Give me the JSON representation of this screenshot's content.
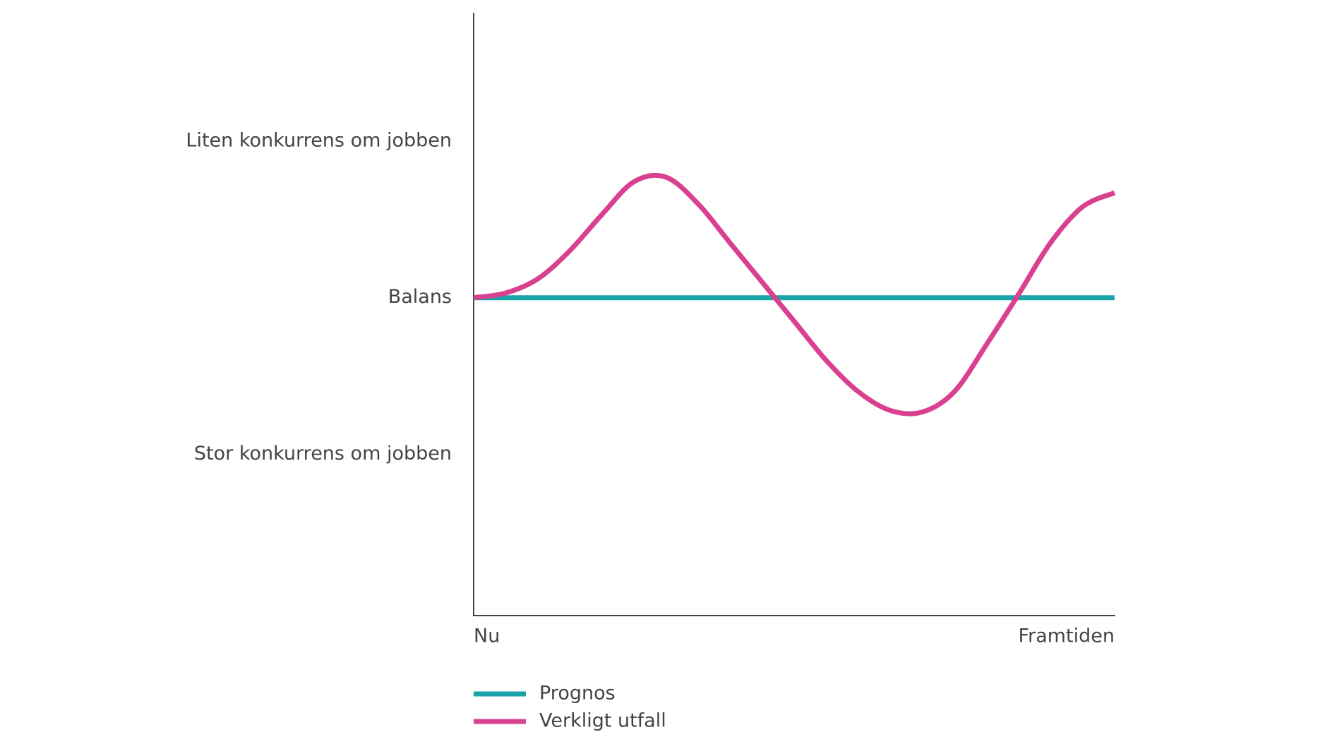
{
  "chart_data": {
    "type": "line",
    "x": [
      0,
      0.05,
      0.1,
      0.15,
      0.2,
      0.25,
      0.3,
      0.35,
      0.4,
      0.45,
      0.5,
      0.55,
      0.6,
      0.65,
      0.7,
      0.75,
      0.8,
      0.85,
      0.9,
      0.95,
      1
    ],
    "series": [
      {
        "name": "Prognos",
        "color": "#1aa3a8",
        "values": [
          0,
          0,
          0,
          0,
          0,
          0,
          0,
          0,
          0,
          0,
          0,
          0,
          0,
          0,
          0,
          0,
          0,
          0,
          0,
          0,
          0
        ]
      },
      {
        "name": "Verkligt utfall",
        "color": "#d9408f",
        "values": [
          0,
          0.03,
          0.12,
          0.3,
          0.53,
          0.74,
          0.77,
          0.6,
          0.35,
          0.1,
          -0.15,
          -0.4,
          -0.6,
          -0.72,
          -0.73,
          -0.6,
          -0.3,
          0.02,
          0.35,
          0.58,
          0.67
        ]
      }
    ],
    "xlim": [
      0,
      1
    ],
    "xticks": [
      {
        "value": 0,
        "label": "Nu"
      },
      {
        "value": 1,
        "label": "Framtiden"
      }
    ],
    "ylim": [
      -2.03,
      1.82
    ],
    "yticks": [
      {
        "value": -1,
        "label": "Stor konkurrens om jobben"
      },
      {
        "value": 0,
        "label": "Balans"
      },
      {
        "value": 1,
        "label": "Liten konkurrens om jobben"
      }
    ],
    "legend": "bottom-left"
  }
}
